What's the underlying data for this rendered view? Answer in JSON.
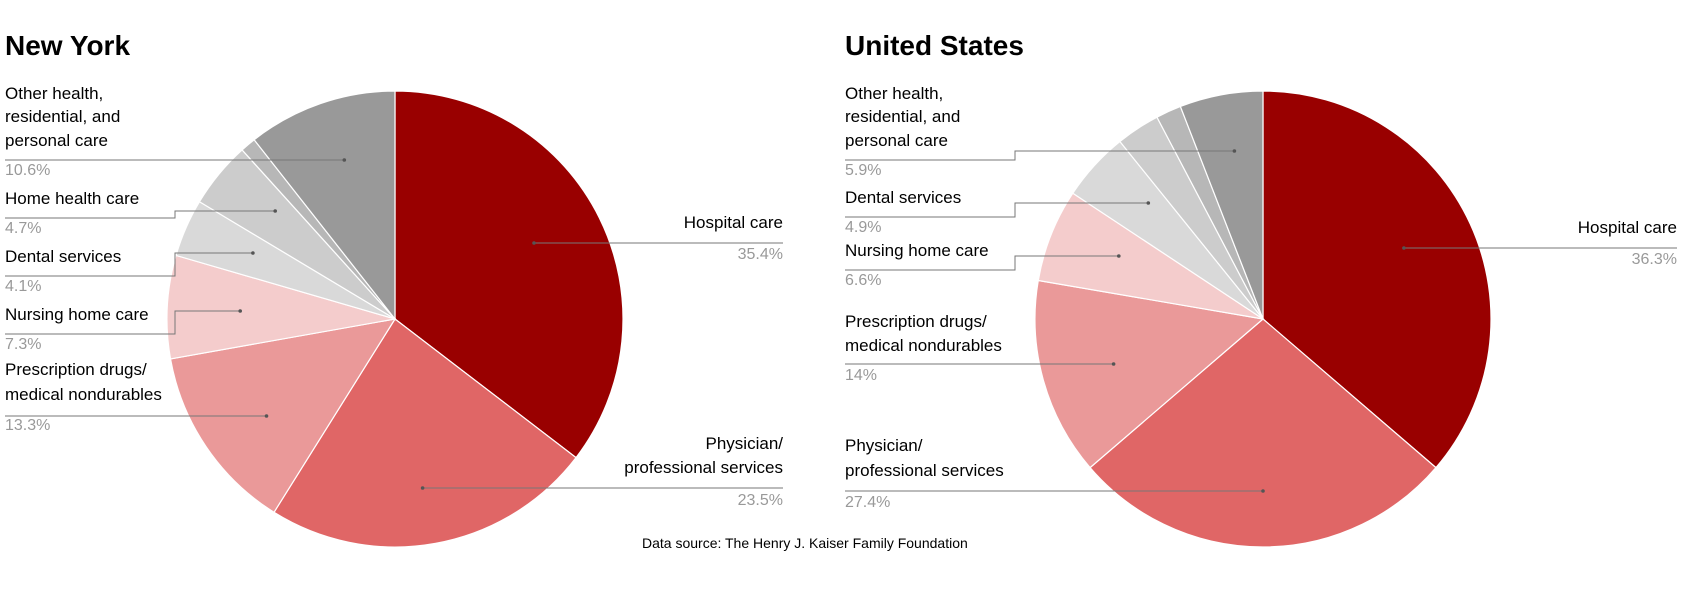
{
  "source_note": "Data source: The Henry J. Kaiser Family Foundation",
  "chart_data": [
    {
      "type": "pie",
      "title": "New York",
      "slices": [
        {
          "label": "Hospital care",
          "value": 35.4,
          "display": "35.4%",
          "color": "#990000"
        },
        {
          "label": "Physician/ professional services",
          "value": 23.5,
          "display": "23.5%",
          "color": "#e06666"
        },
        {
          "label": "Prescription drugs/ medical nondurables",
          "value": 13.3,
          "display": "13.3%",
          "color": "#ea9999"
        },
        {
          "label": "Nursing home care",
          "value": 7.3,
          "display": "7.3%",
          "color": "#f4cccc"
        },
        {
          "label": "Dental services",
          "value": 4.1,
          "display": "4.1%",
          "color": "#d9d9d9"
        },
        {
          "label": "Home health care",
          "value": 4.7,
          "display": "4.7%",
          "color": "#cccccc"
        },
        {
          "label": "",
          "value": 1.1,
          "display": "",
          "color": "#b7b7b7"
        },
        {
          "label": "Other health, residential, and personal care",
          "value": 10.6,
          "display": "10.6%",
          "color": "#999999"
        }
      ]
    },
    {
      "type": "pie",
      "title": "United States",
      "slices": [
        {
          "label": "Hospital care",
          "value": 36.3,
          "display": "36.3%",
          "color": "#990000"
        },
        {
          "label": "Physician/ professional services",
          "value": 27.4,
          "display": "27.4%",
          "color": "#e06666"
        },
        {
          "label": "Prescription drugs/ medical nondurables",
          "value": 14,
          "display": "14%",
          "color": "#ea9999"
        },
        {
          "label": "Nursing home care",
          "value": 6.6,
          "display": "6.6%",
          "color": "#f4cccc"
        },
        {
          "label": "Dental services",
          "value": 4.9,
          "display": "4.9%",
          "color": "#d9d9d9"
        },
        {
          "label": "",
          "value": 3.1,
          "display": "",
          "color": "#cccccc"
        },
        {
          "label": "",
          "value": 1.8,
          "display": "",
          "color": "#b7b7b7"
        },
        {
          "label": "Other health, residential, and personal care",
          "value": 5.9,
          "display": "5.9%",
          "color": "#999999"
        }
      ]
    }
  ]
}
